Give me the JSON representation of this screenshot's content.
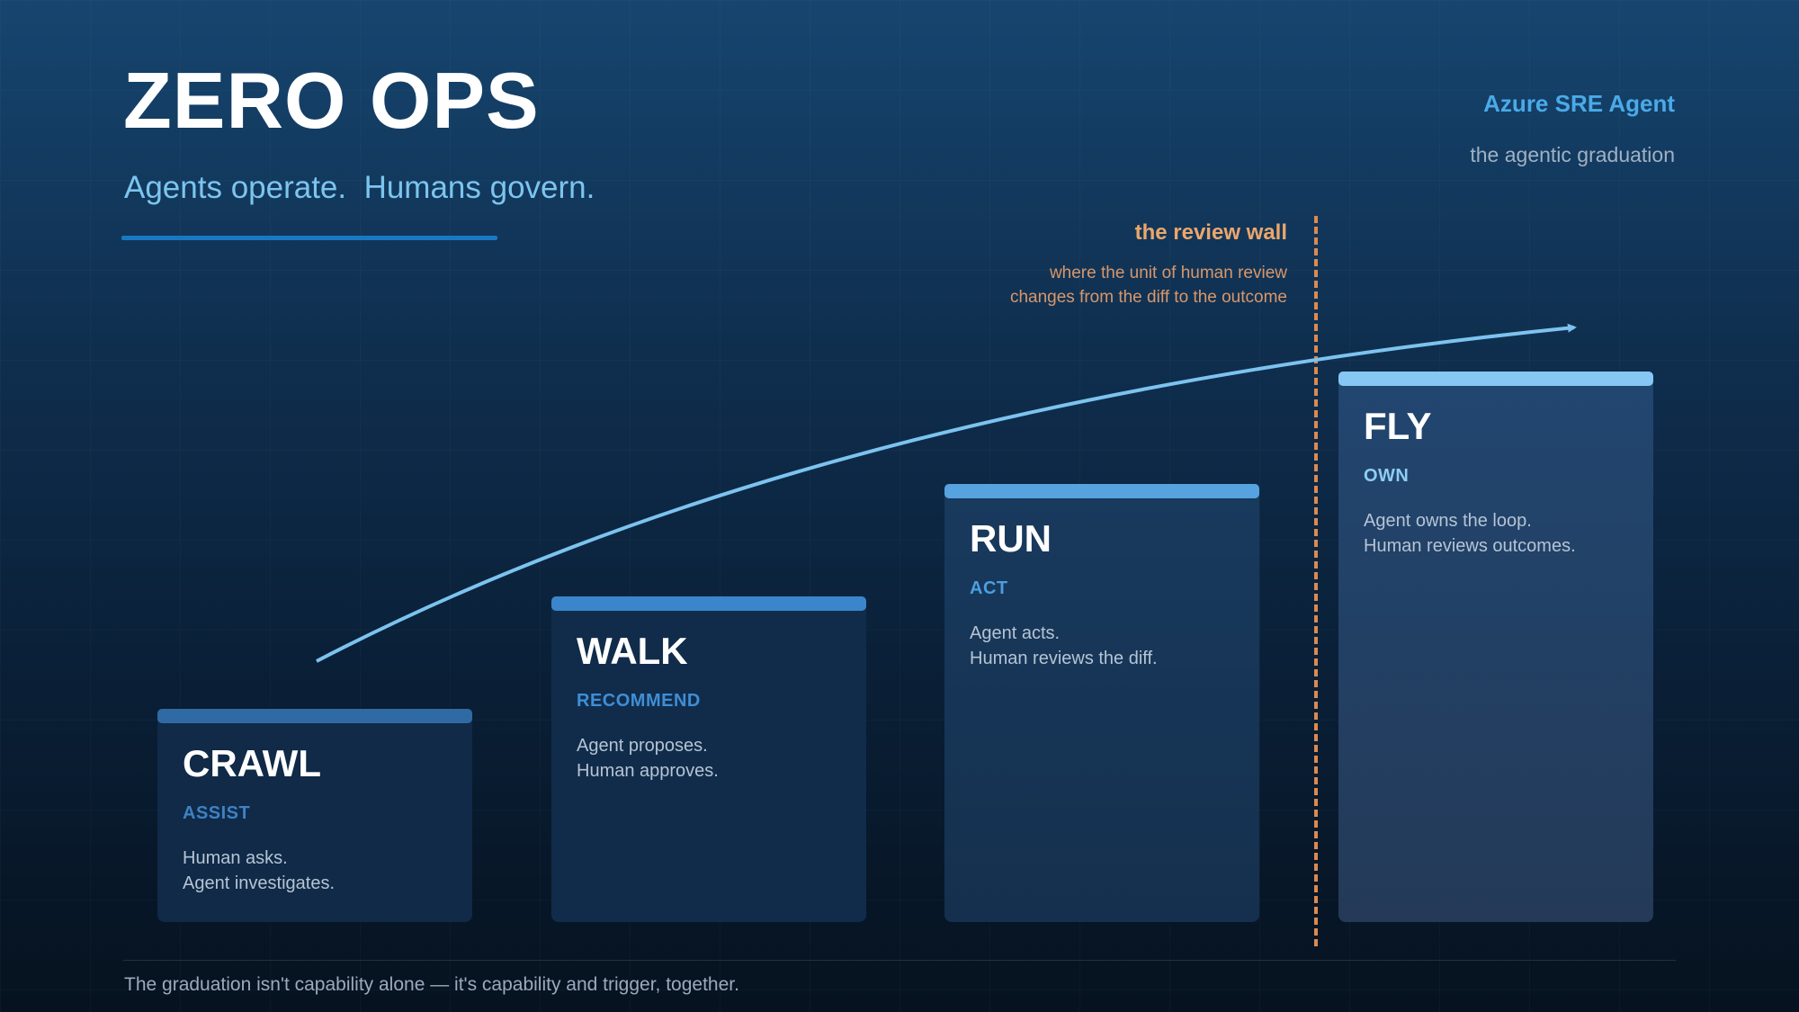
{
  "header": {
    "title": "ZERO OPS",
    "subtitle": "Agents operate.  Humans govern.",
    "brand": "Azure SRE Agent",
    "brand_sub": "the agentic graduation"
  },
  "review_wall": {
    "title": "the review wall",
    "desc_lines": [
      "where the unit of human review",
      "changes from the diff to the outcome"
    ]
  },
  "stages": [
    {
      "name": "CRAWL",
      "mode": "ASSIST",
      "lines": [
        "Human asks.",
        "Agent investigates."
      ],
      "accent": "#2f6aa5",
      "mode_color": "#3d82c4"
    },
    {
      "name": "WALK",
      "mode": "RECOMMEND",
      "lines": [
        "Agent proposes.",
        "Human approves."
      ],
      "accent": "#3b86cb",
      "mode_color": "#3f8ed6"
    },
    {
      "name": "RUN",
      "mode": "ACT",
      "lines": [
        "Agent acts.",
        "Human reviews the diff."
      ],
      "accent": "#56a3e0",
      "mode_color": "#4c9ee0"
    },
    {
      "name": "FLY",
      "mode": "OWN",
      "lines": [
        "Agent owns the loop.",
        "Human reviews outcomes."
      ],
      "accent": "#86c7f3",
      "mode_color": "#8fcdf4"
    }
  ],
  "footer": {
    "note": "The graduation isn't capability alone — it's capability and trigger, together."
  },
  "colors": {
    "curve": "#7cc3ef",
    "wall": "#db8a52"
  }
}
